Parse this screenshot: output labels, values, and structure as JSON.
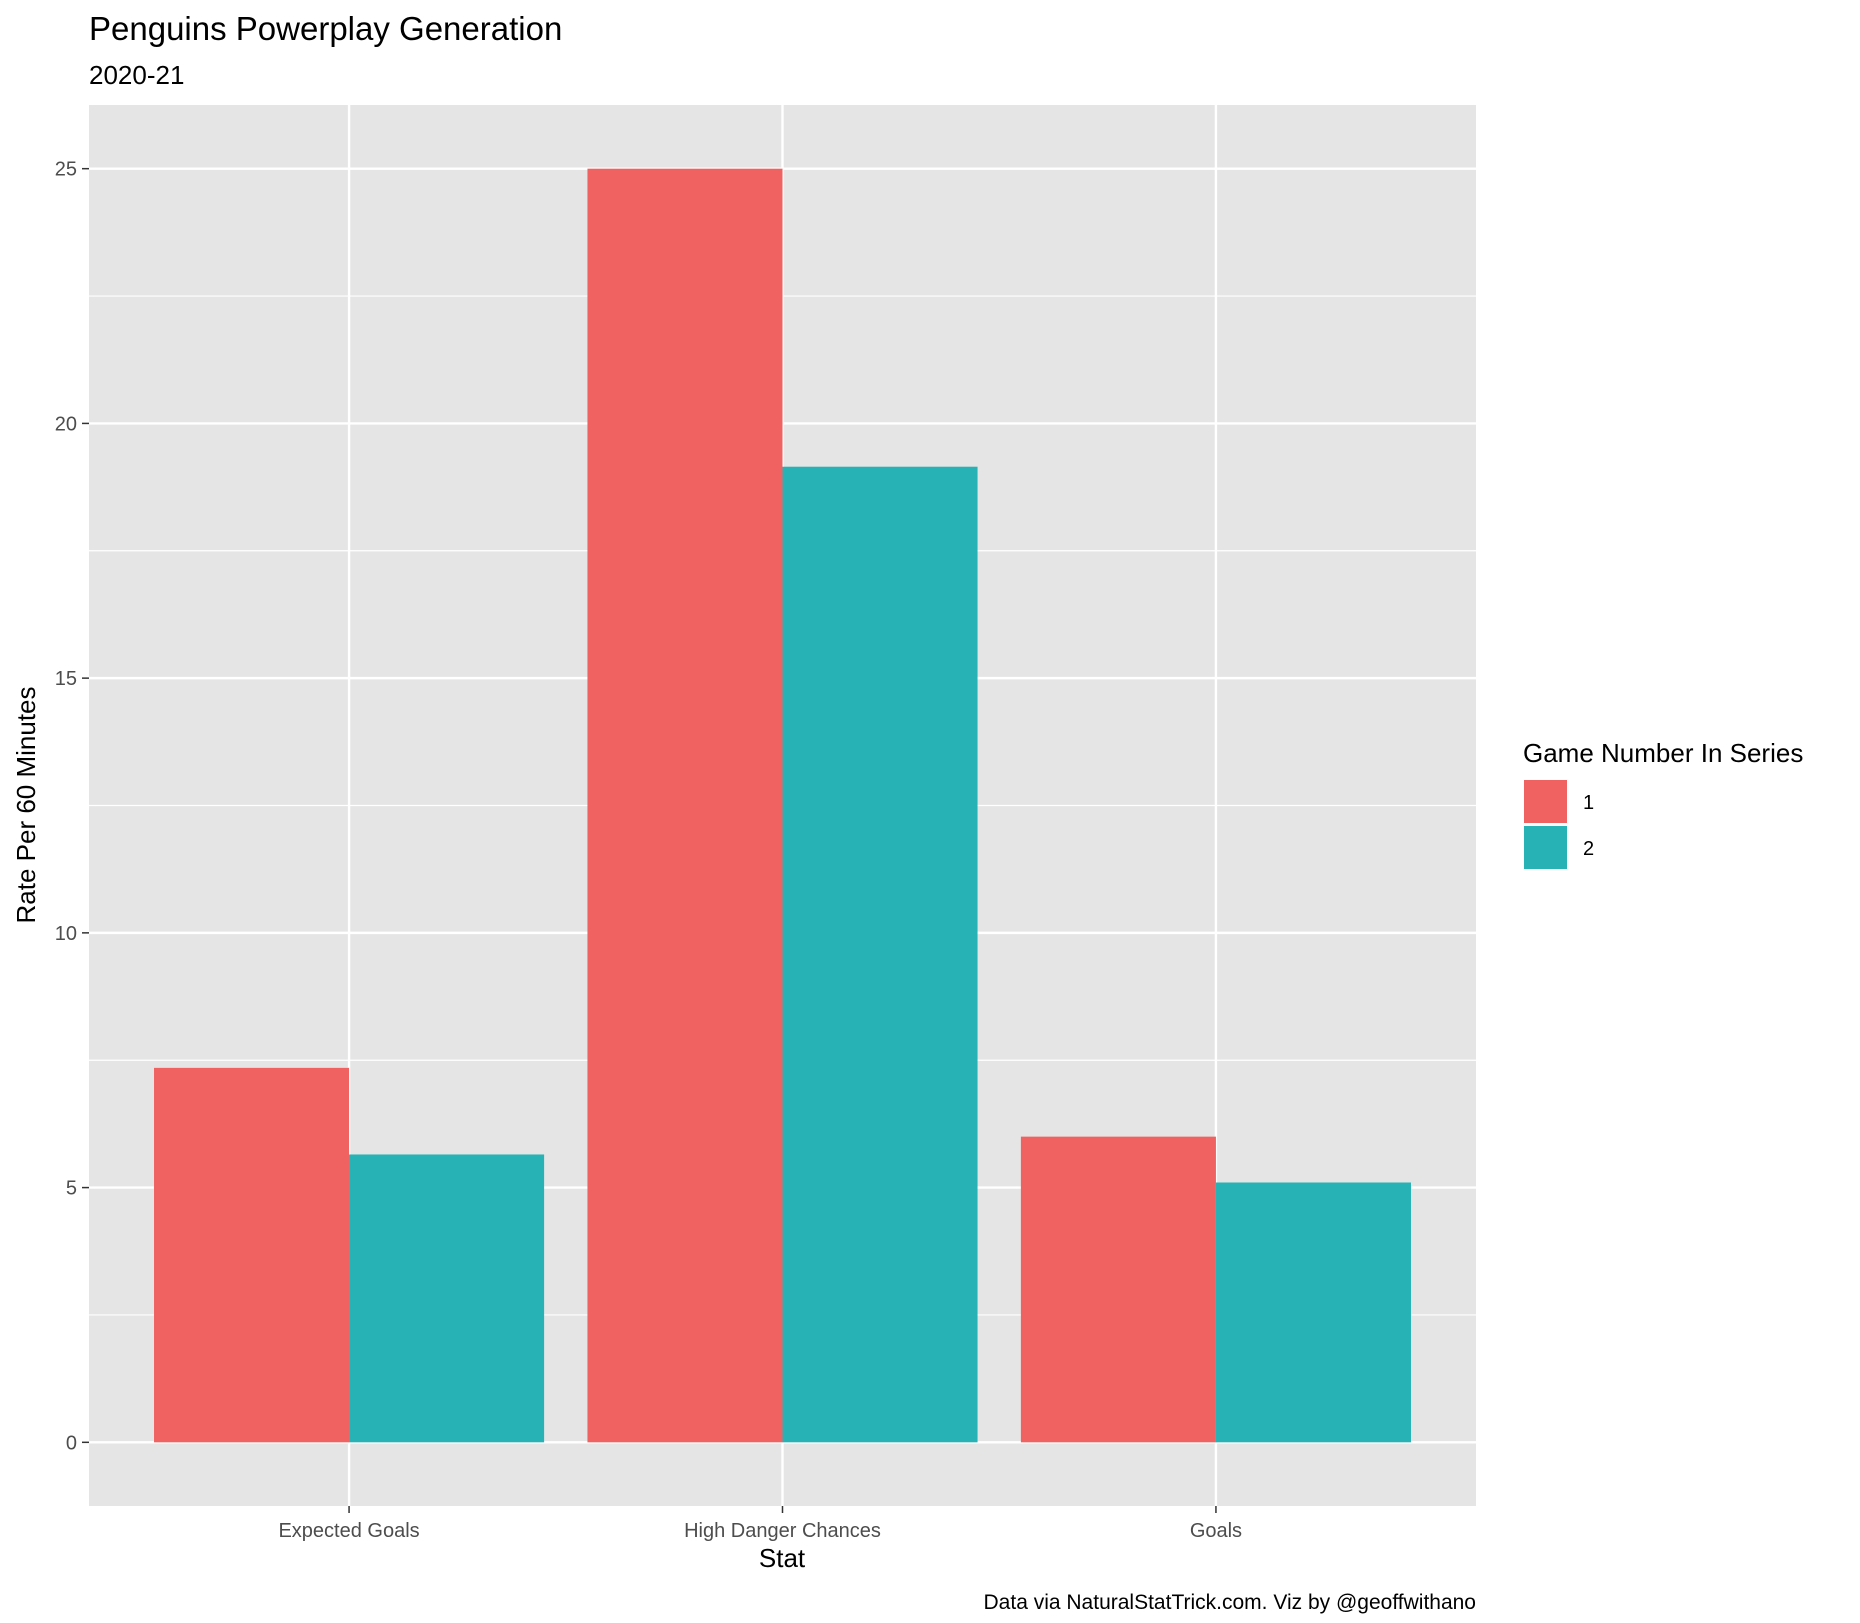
{
  "chart_data": {
    "type": "bar",
    "title": "Penguins Powerplay Generation",
    "subtitle": "2020-21",
    "xlabel": "Stat",
    "ylabel": "Rate Per 60 Minutes",
    "caption": "Data via NaturalStatTrick.com. Viz by @geoffwithano",
    "categories": [
      "Expected Goals",
      "High Danger Chances",
      "Goals"
    ],
    "legend_title": "Game Number In Series",
    "legend_position": "right",
    "series": [
      {
        "name": "1",
        "color": "#F06262",
        "values": [
          7.35,
          25.0,
          6.0
        ]
      },
      {
        "name": "2",
        "color": "#27B2B5",
        "values": [
          5.65,
          19.15,
          5.1
        ]
      }
    ],
    "yticks": [
      0,
      5,
      10,
      15,
      20,
      25
    ],
    "ylim": [
      -1.25,
      26.25
    ],
    "grid": true,
    "panel_background": "#E5E5E5",
    "grid_color": "#FFFFFF"
  }
}
